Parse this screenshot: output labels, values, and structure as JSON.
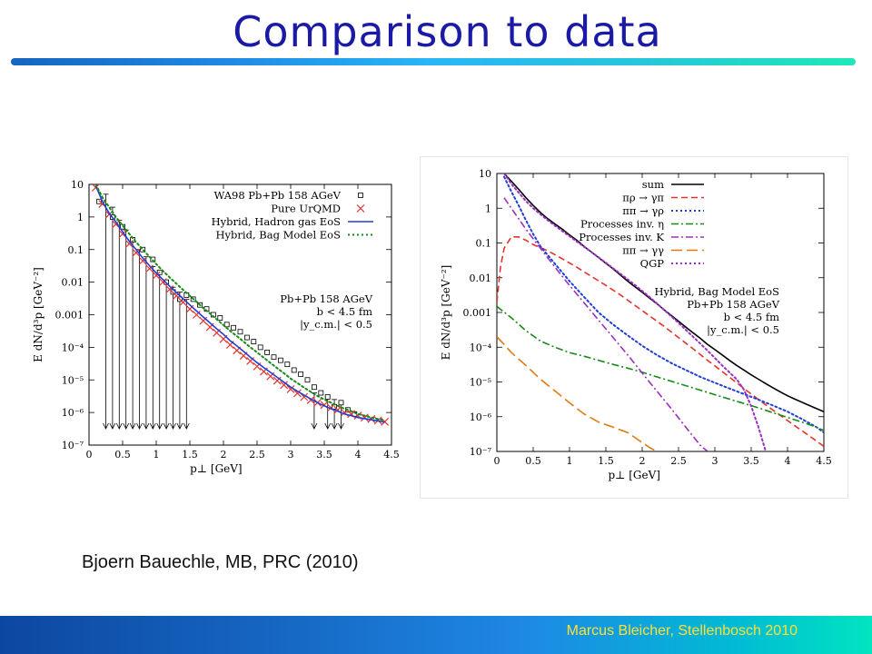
{
  "slide": {
    "title": "Comparison to data",
    "citation": "Bjoern Bauechle, MB, PRC (2010)",
    "footer": "Marcus Bleicher, Stellenbosch 2010",
    "colors": {
      "title": "#1a1aa6",
      "footer_text": "#ffe033"
    }
  },
  "chart_data": [
    {
      "type": "line",
      "xlabel": "p⊥ [GeV]",
      "ylabel": "E dN/d³p [GeV⁻²]",
      "xlim": [
        0,
        4.5
      ],
      "ylim": [
        1e-07,
        10
      ],
      "yscale": "log",
      "xticks": [
        "0",
        "0.5",
        "1",
        "1.5",
        "2",
        "2.5",
        "3",
        "3.5",
        "4",
        "4.5"
      ],
      "yticks": [
        "10",
        "1",
        "0.1",
        "0.01",
        "0.001",
        "10⁻⁴",
        "10⁻⁵",
        "10⁻⁶",
        "10⁻⁷"
      ],
      "legend_position": "top-right",
      "annotation": [
        "Pb+Pb 158 AGeV",
        "b < 4.5 fm",
        "|y_c.m.| < 0.5"
      ],
      "series": [
        {
          "name": "WA98 Pb+Pb 158 AGeV",
          "style": "open-square",
          "color": "#000000",
          "x": [
            0.15,
            0.35,
            0.5,
            0.65,
            0.8,
            0.95,
            1.05,
            1.15,
            1.25,
            1.35,
            1.45,
            1.55,
            1.65,
            1.75,
            1.85,
            1.95,
            2.05,
            2.15,
            2.25,
            2.35,
            2.45,
            2.55,
            2.65,
            2.75,
            2.85,
            2.95,
            3.05,
            3.15,
            3.25,
            3.35,
            3.45,
            3.55,
            3.65,
            3.75,
            3.85,
            3.95
          ],
          "y": [
            3,
            1,
            0.5,
            0.2,
            0.1,
            0.05,
            0.02,
            0.01,
            0.005,
            0.003,
            0.004,
            0.003,
            0.002,
            0.0015,
            0.001,
            0.0008,
            0.0005,
            0.0004,
            0.0003,
            0.0002,
            0.00015,
            0.0001,
            7e-05,
            5e-05,
            4e-05,
            3e-05,
            2e-05,
            1.5e-05,
            1e-05,
            6e-06,
            4e-06,
            3e-06,
            1.5e-06,
            2e-06,
            1.2e-06,
            9e-07
          ],
          "upper_limits_x": [
            0.25,
            0.35,
            0.45,
            0.55,
            0.65,
            0.75,
            0.85,
            0.95,
            1.05,
            1.15,
            1.25,
            1.35,
            1.45,
            3.35,
            3.55,
            3.65,
            3.75
          ],
          "upper_limits_y": [
            5,
            2,
            0.8,
            0.4,
            0.2,
            0.1,
            0.06,
            0.03,
            0.02,
            0.01,
            0.007,
            0.005,
            0.003,
            4e-06,
            3e-06,
            2.5e-06,
            2e-06
          ]
        },
        {
          "name": "Pure UrQMD",
          "style": "cross",
          "color": "#e8312b",
          "x": [
            0.1,
            0.2,
            0.3,
            0.4,
            0.5,
            0.6,
            0.7,
            0.8,
            0.9,
            1.0,
            1.1,
            1.2,
            1.3,
            1.4,
            1.5,
            1.6,
            1.7,
            1.8,
            1.9,
            2.0,
            2.1,
            2.2,
            2.3,
            2.4,
            2.5,
            2.6,
            2.7,
            2.8,
            2.9,
            3.0,
            3.1,
            3.2,
            3.3,
            3.4,
            3.5,
            3.6,
            3.7,
            3.8,
            3.9,
            4.0,
            4.1,
            4.2,
            4.3,
            4.4
          ],
          "y": [
            8,
            2.5,
            1.2,
            0.6,
            0.3,
            0.15,
            0.08,
            0.045,
            0.026,
            0.016,
            0.01,
            0.006,
            0.0038,
            0.0024,
            0.0015,
            0.001,
            0.00065,
            0.00042,
            0.00028,
            0.00018,
            0.00012,
            8e-05,
            5.5e-05,
            3.8e-05,
            2.6e-05,
            1.8e-05,
            1.3e-05,
            9.5e-06,
            7e-06,
            5.2e-06,
            3.9e-06,
            3e-06,
            2.4e-06,
            2e-06,
            1.7e-06,
            1.4e-06,
            1.2e-06,
            1e-06,
            9e-07,
            8e-07,
            7e-07,
            6.3e-07,
            5.7e-07,
            5.2e-07
          ]
        },
        {
          "name": "Hybrid, Hadron gas EoS",
          "style": "solid",
          "color": "#1f3fd6",
          "x": [
            0.1,
            0.2,
            0.3,
            0.4,
            0.5,
            0.6,
            0.7,
            0.8,
            0.9,
            1.0,
            1.1,
            1.2,
            1.3,
            1.4,
            1.5,
            1.6,
            1.7,
            1.8,
            1.9,
            2.0,
            2.1,
            2.2,
            2.3,
            2.4,
            2.5,
            2.6,
            2.7,
            2.8,
            2.9,
            3.0,
            3.1,
            3.2,
            3.3,
            3.4,
            3.5,
            3.6,
            3.7,
            3.8,
            3.9,
            4.0,
            4.1,
            4.2,
            4.3,
            4.4
          ],
          "y": [
            9,
            3,
            1.3,
            0.7,
            0.35,
            0.18,
            0.1,
            0.055,
            0.032,
            0.019,
            0.012,
            0.0075,
            0.0048,
            0.0031,
            0.002,
            0.0013,
            0.00085,
            0.00056,
            0.00037,
            0.00025,
            0.00016,
            0.00011,
            7.5e-05,
            5e-05,
            3.4e-05,
            2.4e-05,
            1.7e-05,
            1.2e-05,
            8.5e-06,
            6e-06,
            4.5e-06,
            3.4e-06,
            2.6e-06,
            2e-06,
            1.6e-06,
            1.3e-06,
            1.1e-06,
            9e-07,
            8e-07,
            7e-07,
            6.5e-07,
            6e-07,
            5.5e-07,
            5e-07
          ]
        },
        {
          "name": "Hybrid, Bag Model EoS",
          "style": "dotted",
          "color": "#178a17",
          "x": [
            0.1,
            0.2,
            0.3,
            0.4,
            0.5,
            0.6,
            0.7,
            0.8,
            0.9,
            1.0,
            1.1,
            1.2,
            1.3,
            1.4,
            1.5,
            1.6,
            1.7,
            1.8,
            1.9,
            2.0,
            2.1,
            2.2,
            2.3,
            2.4,
            2.5,
            2.6,
            2.7,
            2.8,
            2.9,
            3.0,
            3.1,
            3.2,
            3.3,
            3.4,
            3.5,
            3.6,
            3.7,
            3.8,
            3.9,
            4.0,
            4.1,
            4.2,
            4.3,
            4.4
          ],
          "y": [
            10,
            4,
            2,
            1,
            0.55,
            0.3,
            0.17,
            0.1,
            0.06,
            0.036,
            0.022,
            0.014,
            0.009,
            0.0058,
            0.0038,
            0.0025,
            0.0016,
            0.0011,
            0.00072,
            0.00048,
            0.00032,
            0.00022,
            0.00015,
            0.0001,
            7e-05,
            4.8e-05,
            3.3e-05,
            2.3e-05,
            1.6e-05,
            1.1e-05,
            8e-06,
            5.8e-06,
            4.3e-06,
            3.2e-06,
            2.5e-06,
            2e-06,
            1.6e-06,
            1.3e-06,
            1.1e-06,
            9e-07,
            8e-07,
            7e-07,
            6.3e-07,
            5.7e-07
          ]
        }
      ]
    },
    {
      "type": "line",
      "xlabel": "p⊥ [GeV]",
      "ylabel": "E dN/d³p [GeV⁻²]",
      "xlim": [
        0,
        4.5
      ],
      "ylim": [
        1e-07,
        10
      ],
      "yscale": "log",
      "xticks": [
        "0",
        "0.5",
        "1",
        "1.5",
        "2",
        "2.5",
        "3",
        "3.5",
        "4",
        "4.5"
      ],
      "yticks": [
        "10",
        "1",
        "0.1",
        "0.01",
        "0.001",
        "10⁻⁴",
        "10⁻⁵",
        "10⁻⁶",
        "10⁻⁷"
      ],
      "legend_position": "top-right",
      "annotation": [
        "Hybrid, Bag Model EoS",
        "Pb+Pb 158 AGeV",
        "b < 4.5 fm",
        "|y_c.m.| < 0.5"
      ],
      "series": [
        {
          "name": "sum",
          "style": "solid",
          "color": "#000000",
          "x": [
            0.1,
            0.2,
            0.3,
            0.4,
            0.5,
            0.6,
            0.7,
            0.8,
            0.9,
            1.0,
            1.1,
            1.2,
            1.3,
            1.4,
            1.5,
            1.6,
            1.7,
            1.8,
            1.9,
            2.0,
            2.1,
            2.2,
            2.3,
            2.4,
            2.5,
            2.6,
            2.7,
            2.8,
            2.9,
            3.0,
            3.1,
            3.2,
            3.3,
            3.4,
            3.5,
            3.6,
            3.7,
            3.8,
            3.9,
            4.0,
            4.1,
            4.2,
            4.3,
            4.4,
            4.5
          ],
          "y": [
            10,
            6,
            3.5,
            2,
            1.2,
            0.75,
            0.5,
            0.35,
            0.25,
            0.17,
            0.12,
            0.08,
            0.055,
            0.038,
            0.026,
            0.018,
            0.012,
            0.008,
            0.0055,
            0.0038,
            0.0026,
            0.0018,
            0.0012,
            0.00082,
            0.00056,
            0.00038,
            0.00026,
            0.00018,
            0.00012,
            8.5e-05,
            6e-05,
            4.2e-05,
            3e-05,
            2.2e-05,
            1.6e-05,
            1.2e-05,
            9e-06,
            6.8e-06,
            5.2e-06,
            4e-06,
            3.2e-06,
            2.6e-06,
            2.1e-06,
            1.7e-06,
            1.4e-06
          ]
        },
        {
          "name": "πρ → γπ",
          "style": "dashed",
          "color": "#e8312b",
          "x": [
            0.0,
            0.05,
            0.1,
            0.2,
            0.3,
            0.4,
            0.5,
            0.7,
            0.9,
            1.1,
            1.3,
            1.5,
            1.7,
            1.9,
            2.1,
            2.3,
            2.5,
            2.7,
            2.9,
            3.1,
            3.3,
            3.5,
            3.7,
            3.9,
            4.1,
            4.3,
            4.5
          ],
          "y": [
            0.002,
            0.02,
            0.07,
            0.15,
            0.15,
            0.12,
            0.09,
            0.06,
            0.035,
            0.02,
            0.011,
            0.006,
            0.0032,
            0.0016,
            0.0008,
            0.0004,
            0.00019,
            9e-05,
            4.2e-05,
            2e-05,
            9.5e-06,
            4.5e-06,
            2.2e-06,
            1.1e-06,
            5.5e-07,
            2.8e-07,
            1.4e-07
          ]
        },
        {
          "name": "ππ → γρ",
          "style": "dotted",
          "color": "#1f3fd6",
          "x": [
            0.1,
            0.2,
            0.3,
            0.4,
            0.5,
            0.6,
            0.8,
            1.0,
            1.2,
            1.4,
            1.6,
            1.8,
            2.0,
            2.2,
            2.4,
            2.6,
            2.8,
            3.0,
            3.2,
            3.4,
            3.6,
            3.8,
            4.0,
            4.2,
            4.4,
            4.5
          ],
          "y": [
            8,
            3,
            1.2,
            0.45,
            0.18,
            0.08,
            0.025,
            0.008,
            0.0028,
            0.001,
            0.00045,
            0.00022,
            0.00011,
            6e-05,
            3.5e-05,
            2.2e-05,
            1.4e-05,
            9.5e-06,
            6.5e-06,
            4.5e-06,
            3.1e-06,
            2.1e-06,
            1.4e-06,
            8.5e-07,
            5e-07,
            3.5e-07
          ]
        },
        {
          "name": "Processes inv. η",
          "style": "dash-dot",
          "color": "#178a17",
          "x": [
            0.0,
            0.2,
            0.4,
            0.6,
            0.8,
            1.0,
            1.2,
            1.4,
            1.6,
            1.8,
            2.0,
            2.2,
            2.4,
            2.6,
            2.8,
            3.0,
            3.2,
            3.4,
            3.6,
            3.8,
            4.0,
            4.2,
            4.4,
            4.5
          ],
          "y": [
            0.0015,
            0.0007,
            0.0003,
            0.00015,
            0.0001,
            7e-05,
            5.5e-05,
            4.2e-05,
            3.2e-05,
            2.5e-05,
            1.9e-05,
            1.4e-05,
            1.05e-05,
            7.8e-06,
            5.8e-06,
            4.3e-06,
            3.2e-06,
            2.4e-06,
            1.8e-06,
            1.3e-06,
            9.5e-07,
            7e-07,
            5e-07,
            4e-07
          ]
        },
        {
          "name": "Processes inv. K",
          "style": "dash-dot",
          "color": "#9b30c0",
          "x": [
            0.1,
            0.2,
            0.3,
            0.4,
            0.6,
            0.8,
            1.0,
            1.2,
            1.4,
            1.6,
            1.8,
            2.0,
            2.2,
            2.4,
            2.6,
            2.8,
            2.9
          ],
          "y": [
            2,
            1,
            0.5,
            0.25,
            0.07,
            0.02,
            0.006,
            0.0019,
            0.0006,
            0.00019,
            6e-05,
            1.8e-05,
            5.5e-06,
            1.7e-06,
            5e-07,
            1.5e-07,
            1e-07
          ]
        },
        {
          "name": "ππ → γγ",
          "style": "long-dashed",
          "color": "#e07a10",
          "x": [
            0.0,
            0.1,
            0.2,
            0.4,
            0.6,
            0.8,
            1.0,
            1.2,
            1.4,
            1.6,
            1.8,
            2.0,
            2.1,
            2.2
          ],
          "y": [
            0.0002,
            0.00012,
            7e-05,
            3e-05,
            1.2e-05,
            5.5e-06,
            2.5e-06,
            1.2e-06,
            7e-07,
            5e-07,
            3.5e-07,
            1.8e-07,
            1.3e-07,
            1e-07
          ]
        },
        {
          "name": "QGP",
          "style": "dotted",
          "color": "#9b30c0",
          "x": [
            0.1,
            0.2,
            0.3,
            0.4,
            0.5,
            0.7,
            0.9,
            1.1,
            1.3,
            1.5,
            1.7,
            1.9,
            2.1,
            2.3,
            2.5,
            2.7,
            2.9,
            3.1,
            3.3,
            3.4,
            3.5,
            3.6,
            3.7
          ],
          "y": [
            10,
            5,
            2.8,
            1.6,
            1,
            0.45,
            0.22,
            0.11,
            0.055,
            0.027,
            0.013,
            0.0062,
            0.0028,
            0.0012,
            0.0005,
            0.0002,
            8e-05,
            3e-05,
            1.2e-05,
            6e-06,
            2e-06,
            5e-07,
            1e-07
          ]
        }
      ]
    }
  ]
}
